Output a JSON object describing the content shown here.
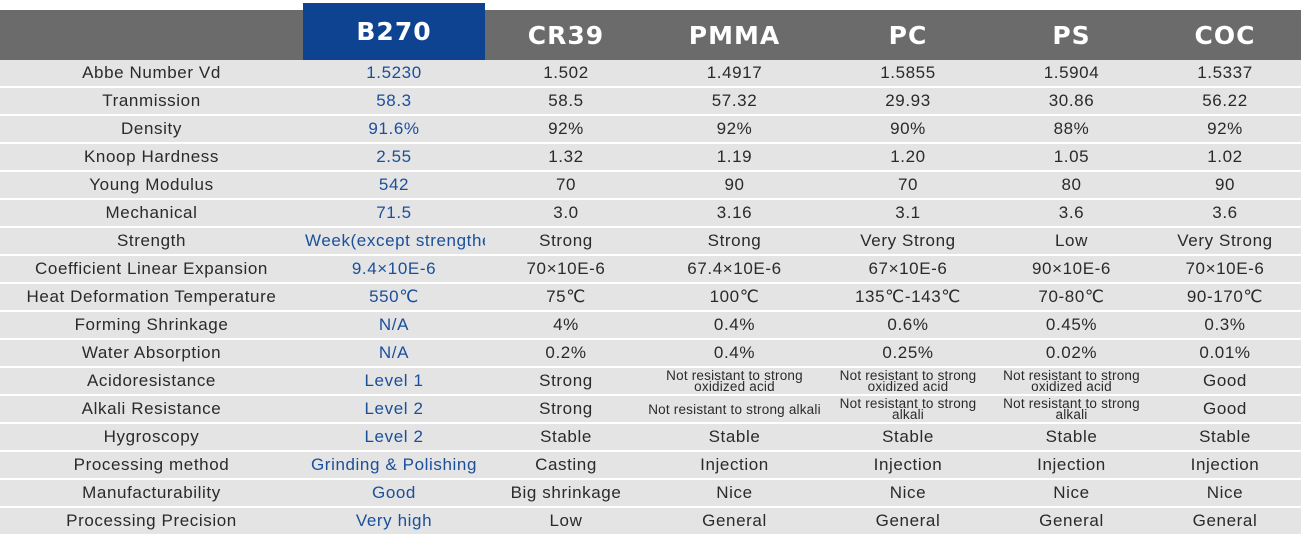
{
  "table": {
    "columns": [
      "",
      "B270",
      "CR39",
      "PMMA",
      "PC",
      "PS",
      "COC"
    ],
    "highlight_color": "#0d4391",
    "header_color": "#6b6b6b",
    "row_color": "#e4e4e4",
    "rows": [
      {
        "label": "Abbe Number Vd",
        "values": [
          "1.5230",
          "1.502",
          "1.4917",
          "1.5855",
          "1.5904",
          "1.5337"
        ]
      },
      {
        "label": "Tranmission",
        "values": [
          "58.3",
          "58.5",
          "57.32",
          "29.93",
          "30.86",
          "56.22"
        ]
      },
      {
        "label": "Density",
        "values": [
          "91.6%",
          "92%",
          "92%",
          "90%",
          "88%",
          "92%"
        ]
      },
      {
        "label": "Knoop Hardness",
        "values": [
          "2.55",
          "1.32",
          "1.19",
          "1.20",
          "1.05",
          "1.02"
        ]
      },
      {
        "label": "Young Modulus",
        "values": [
          "542",
          "70",
          "90",
          "70",
          "80",
          "90"
        ]
      },
      {
        "label": "Mechanical",
        "values": [
          "71.5",
          "3.0",
          "3.16",
          "3.1",
          "3.6",
          "3.6"
        ]
      },
      {
        "label": "Strength",
        "values": [
          "Week(except strengthen)",
          "Strong",
          "Strong",
          "Very Strong",
          "Low",
          "Very Strong"
        ]
      },
      {
        "label": "Coefficient Linear Expansion",
        "values": [
          "9.4×10E-6",
          "70×10E-6",
          "67.4×10E-6",
          "67×10E-6",
          "90×10E-6",
          "70×10E-6"
        ]
      },
      {
        "label": "Heat Deformation Temperature",
        "values": [
          "550℃",
          "75℃",
          "100℃",
          "135℃-143℃",
          "70-80℃",
          "90-170℃"
        ]
      },
      {
        "label": "Forming Shrinkage",
        "values": [
          "N/A",
          "4%",
          "0.4%",
          "0.6%",
          "0.45%",
          "0.3%"
        ]
      },
      {
        "label": "Water Absorption",
        "values": [
          "N/A",
          "0.2%",
          "0.4%",
          "0.25%",
          "0.02%",
          "0.01%"
        ]
      },
      {
        "label": "Acidoresistance",
        "values": [
          "Level 1",
          "Strong",
          "Not resistant to strong oxidized acid",
          "Not resistant to strong oxidized acid",
          "Not resistant to strong oxidized acid",
          "Good"
        ]
      },
      {
        "label": "Alkali Resistance",
        "values": [
          "Level 2",
          "Strong",
          "Not resistant to strong alkali",
          "Not resistant to strong alkali",
          "Not resistant to strong alkali",
          "Good"
        ]
      },
      {
        "label": "Hygroscopy",
        "values": [
          "Level 2",
          "Stable",
          "Stable",
          "Stable",
          "Stable",
          "Stable"
        ]
      },
      {
        "label": "Processing method",
        "values": [
          "Grinding & Polishing",
          "Casting",
          "Injection",
          "Injection",
          "Injection",
          "Injection"
        ]
      },
      {
        "label": "Manufacturability",
        "values": [
          "Good",
          "Big shrinkage",
          "Nice",
          "Nice",
          "Nice",
          "Nice"
        ]
      },
      {
        "label": "Processing Precision",
        "values": [
          "Very high",
          "Low",
          "General",
          "General",
          "General",
          "General"
        ]
      }
    ]
  }
}
